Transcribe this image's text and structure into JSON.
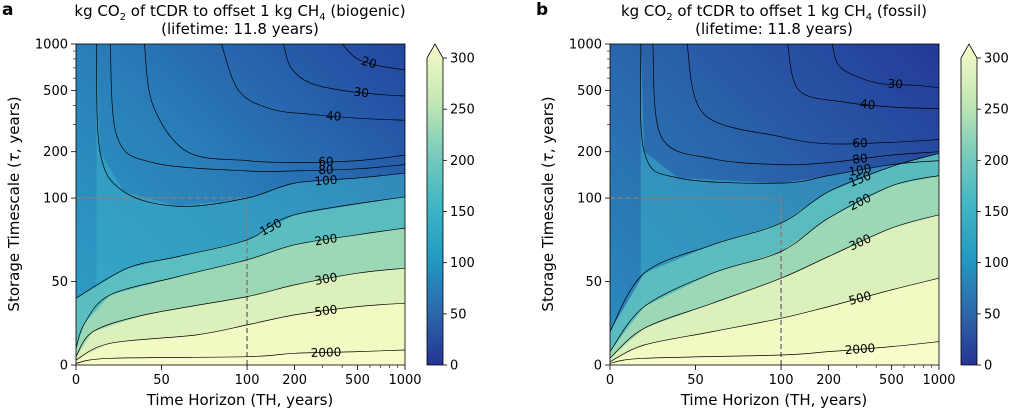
{
  "chart_data": [
    {
      "type": "contour",
      "panel_label": "a",
      "title_prefix": "kg CO",
      "title_sub1": "2",
      "title_mid": " of tCDR to offset 1 kg CH",
      "title_sub2": "4",
      "title_suffix": " (biogenic)",
      "subtitle": "(lifetime: 11.8 years)",
      "xlabel": "Time Horizon (TH, years)",
      "ylabel_prefix": "Storage Timescale (",
      "ylabel_symbol": "τ",
      "ylabel_suffix": ", years)",
      "x_ticks": [
        "0",
        "50",
        "100",
        "200",
        "500",
        "1000"
      ],
      "y_ticks": [
        "0",
        "50",
        "100",
        "200",
        "500",
        "1000"
      ],
      "axis_scale": "piecewise: linear 0–100, log 100–1000",
      "reference_lines": [
        {
          "x": 100
        },
        {
          "y": 100
        }
      ],
      "colorbar": {
        "min": 0,
        "max": 300,
        "ticks": [
          "0",
          "50",
          "100",
          "150",
          "200",
          "250",
          "300"
        ],
        "extend": "max",
        "colormap": "YlGnBu_r"
      },
      "contours": [
        {
          "level": 20,
          "label": "20",
          "points": [
            [
              400,
              1000
            ],
            [
              500,
              800
            ],
            [
              700,
              720
            ],
            [
              1000,
              680
            ]
          ]
        },
        {
          "level": 30,
          "label": "30",
          "points": [
            [
              170,
              1000
            ],
            [
              190,
              700
            ],
            [
              250,
              560
            ],
            [
              400,
              500
            ],
            [
              700,
              470
            ],
            [
              1000,
              460
            ]
          ]
        },
        {
          "level": 40,
          "label": "40",
          "points": [
            [
              85,
              1000
            ],
            [
              95,
              500
            ],
            [
              140,
              380
            ],
            [
              250,
              350
            ],
            [
              500,
              330
            ],
            [
              1000,
              320
            ]
          ]
        },
        {
          "level": 60,
          "label": "60",
          "points": [
            [
              40,
              1000
            ],
            [
              45,
              400
            ],
            [
              65,
              200
            ],
            [
              100,
              175
            ],
            [
              200,
              170
            ],
            [
              500,
              175
            ],
            [
              1000,
              190
            ]
          ]
        },
        {
          "level": 80,
          "label": "80",
          "points": [
            [
              20,
              1000
            ],
            [
              24,
              250
            ],
            [
              45,
              170
            ],
            [
              100,
              150
            ],
            [
              200,
              150
            ],
            [
              500,
              155
            ],
            [
              1000,
              165
            ]
          ]
        },
        {
          "level": 100,
          "label": "100",
          "points": [
            [
              12,
              1000
            ],
            [
              14,
              200
            ],
            [
              28,
              110
            ],
            [
              60,
              95
            ],
            [
              100,
              100
            ],
            [
              200,
              125
            ],
            [
              500,
              135
            ],
            [
              1000,
              145
            ]
          ]
        },
        {
          "level": 150,
          "label": "150",
          "points": [
            [
              0,
              40
            ],
            [
              30,
              58
            ],
            [
              60,
              65
            ],
            [
              100,
              75
            ],
            [
              200,
              90
            ],
            [
              1000,
              102
            ]
          ]
        },
        {
          "level": 200,
          "label": "200",
          "points": [
            [
              0,
              10
            ],
            [
              5,
              25
            ],
            [
              20,
              42
            ],
            [
              60,
              53
            ],
            [
              100,
              63
            ],
            [
              200,
              72
            ],
            [
              500,
              78
            ],
            [
              1000,
              82
            ]
          ]
        },
        {
          "level": 300,
          "label": "300",
          "points": [
            [
              0,
              5
            ],
            [
              10,
              20
            ],
            [
              40,
              30
            ],
            [
              100,
              41
            ],
            [
              200,
              48
            ],
            [
              500,
              55
            ],
            [
              1000,
              58
            ]
          ]
        },
        {
          "level": 500,
          "label": "500",
          "points": [
            [
              0,
              3
            ],
            [
              20,
              13
            ],
            [
              70,
              18
            ],
            [
              100,
              24
            ],
            [
              200,
              30
            ],
            [
              500,
              35
            ],
            [
              1000,
              37
            ]
          ]
        },
        {
          "level": 2000,
          "label": "2000",
          "points": [
            [
              0,
              1
            ],
            [
              20,
              4
            ],
            [
              100,
              5
            ],
            [
              200,
              7
            ],
            [
              500,
              8
            ],
            [
              1000,
              9
            ]
          ]
        }
      ]
    },
    {
      "type": "contour",
      "panel_label": "b",
      "title_prefix": "kg CO",
      "title_sub1": "2",
      "title_mid": " of tCDR to offset 1 kg CH",
      "title_sub2": "4",
      "title_suffix": " (fossil)",
      "subtitle": "(lifetime: 11.8 years)",
      "xlabel": "Time Horizon (TH, years)",
      "ylabel_prefix": "Storage Timescale (",
      "ylabel_symbol": "τ",
      "ylabel_suffix": ", years)",
      "x_ticks": [
        "0",
        "50",
        "100",
        "200",
        "500",
        "1000"
      ],
      "y_ticks": [
        "0",
        "50",
        "100",
        "200",
        "500",
        "1000"
      ],
      "axis_scale": "piecewise: linear 0–100, log 100–1000",
      "reference_lines": [
        {
          "x": 100
        },
        {
          "y": 100
        }
      ],
      "colorbar": {
        "min": 0,
        "max": 300,
        "ticks": [
          "0",
          "50",
          "100",
          "150",
          "200",
          "250",
          "300"
        ],
        "extend": "max",
        "colormap": "YlGnBu_r"
      },
      "contours": [
        {
          "level": 30,
          "label": "30",
          "points": [
            [
              210,
              1000
            ],
            [
              240,
              700
            ],
            [
              400,
              560
            ],
            [
              700,
              540
            ],
            [
              1000,
              520
            ]
          ]
        },
        {
          "level": 40,
          "label": "40",
          "points": [
            [
              110,
              1000
            ],
            [
              130,
              500
            ],
            [
              250,
              420
            ],
            [
              500,
              390
            ],
            [
              1000,
              380
            ]
          ]
        },
        {
          "level": 60,
          "label": "60",
          "points": [
            [
              45,
              1000
            ],
            [
              55,
              350
            ],
            [
              100,
              250
            ],
            [
              200,
              225
            ],
            [
              500,
              230
            ],
            [
              1000,
              240
            ]
          ]
        },
        {
          "level": 80,
          "label": "80",
          "points": [
            [
              25,
              1000
            ],
            [
              30,
              250
            ],
            [
              60,
              180
            ],
            [
              100,
              165
            ],
            [
              200,
              170
            ],
            [
              500,
              190
            ],
            [
              1000,
              200
            ]
          ]
        },
        {
          "level": 100,
          "label": "100",
          "points": [
            [
              18,
              1000
            ],
            [
              20,
              200
            ],
            [
              40,
              135
            ],
            [
              100,
              125
            ],
            [
              200,
              140
            ],
            [
              500,
              165
            ],
            [
              1000,
              175
            ]
          ]
        },
        {
          "level": 150,
          "label": "150",
          "points": [
            [
              0,
              20
            ],
            [
              20,
              55
            ],
            [
              60,
              72
            ],
            [
              100,
              85
            ],
            [
              200,
              110
            ],
            [
              500,
              160
            ],
            [
              1000,
              195
            ]
          ]
        },
        {
          "level": 200,
          "label": "200",
          "points": [
            [
              0,
              8
            ],
            [
              20,
              35
            ],
            [
              60,
              55
            ],
            [
              100,
              68
            ],
            [
              200,
              88
            ],
            [
              500,
              120
            ],
            [
              1000,
              140
            ]
          ]
        },
        {
          "level": 300,
          "label": "300",
          "points": [
            [
              0,
              4
            ],
            [
              20,
              22
            ],
            [
              60,
              37
            ],
            [
              100,
              52
            ],
            [
              200,
              65
            ],
            [
              500,
              82
            ],
            [
              1000,
              90
            ]
          ]
        },
        {
          "level": 500,
          "label": "500",
          "points": [
            [
              0,
              2
            ],
            [
              20,
              12
            ],
            [
              60,
              20
            ],
            [
              100,
              28
            ],
            [
              200,
              35
            ],
            [
              500,
              45
            ],
            [
              1000,
              52
            ]
          ]
        },
        {
          "level": 2000,
          "label": "2000",
          "points": [
            [
              0,
              1
            ],
            [
              20,
              4
            ],
            [
              100,
              6
            ],
            [
              200,
              8
            ],
            [
              500,
              11
            ],
            [
              1000,
              14
            ]
          ]
        }
      ]
    }
  ]
}
